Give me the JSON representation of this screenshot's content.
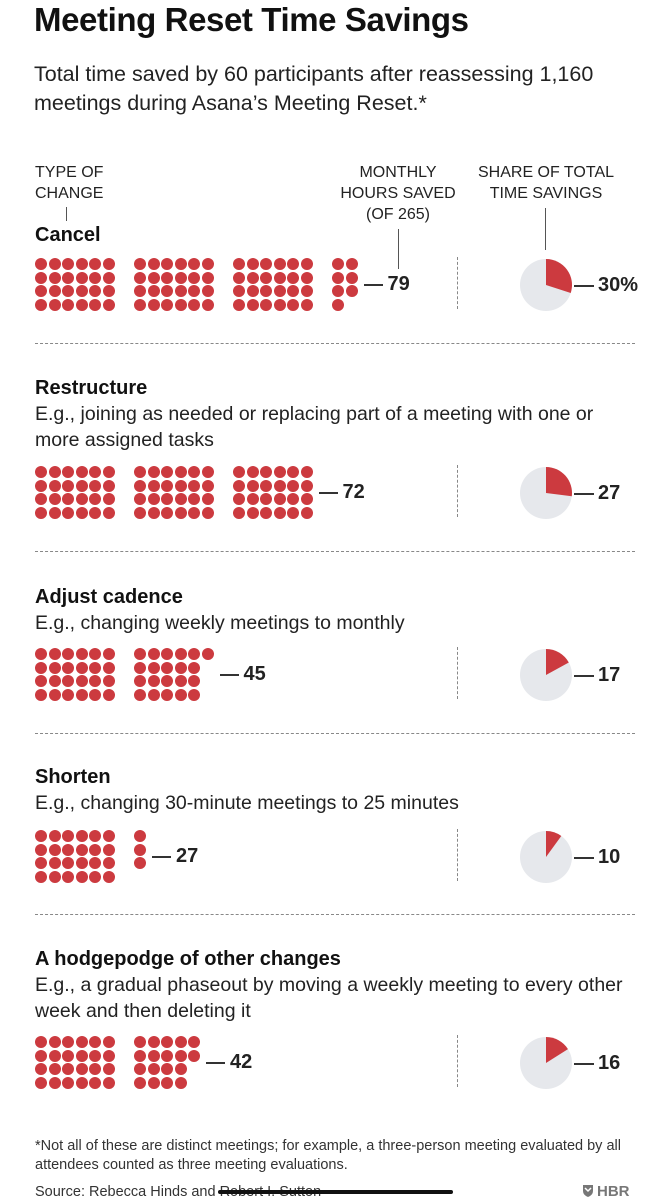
{
  "title": "Meeting Reset Time Savings",
  "subtitle": "Total time saved by 60 participants after reassessing 1,160 meetings during Asana’s Meeting Reset.*",
  "headers": {
    "type": "TYPE OF CHANGE",
    "hours": "MONTHLY HOURS SAVED (OF 265)",
    "share": "SHARE OF TOTAL TIME SAVINGS"
  },
  "colors": {
    "dot": "#cc3a3f",
    "pie_bg": "#e6e8ec",
    "pie_fill": "#cc3a3f"
  },
  "chart_data": {
    "type": "pictogram",
    "total_hours": 265,
    "categories": [
      "Cancel",
      "Restructure",
      "Adjust cadence",
      "Shorten",
      "A hodgepodge of other changes"
    ],
    "rows": [
      {
        "name": "Cancel",
        "description": "",
        "hours": 79,
        "hours_label": "79",
        "share": 30,
        "share_label": "30%"
      },
      {
        "name": "Restructure",
        "description": "E.g., joining as needed or replacing part of a meeting with one or more assigned tasks",
        "hours": 72,
        "hours_label": "72",
        "share": 27,
        "share_label": "27"
      },
      {
        "name": "Adjust cadence",
        "description": "E.g., changing weekly meetings to monthly",
        "hours": 45,
        "hours_label": "45",
        "share": 17,
        "share_label": "17"
      },
      {
        "name": "Shorten",
        "description": "E.g., changing 30-minute meetings to 25 minutes",
        "hours": 27,
        "hours_label": "27",
        "share": 10,
        "share_label": "10"
      },
      {
        "name": "A hodgepodge of other changes",
        "description": "E.g., a gradual phaseout by moving a weekly meeting to every other week and then deleting it",
        "hours": 42,
        "hours_label": "42",
        "share": 16,
        "share_label": "16"
      }
    ]
  },
  "footnote": "*Not all of these are distinct meetings; for example, a three-person meeting evaluated by all attendees counted as three meeting evaluations.",
  "source": "Source: Rebecca Hinds and Robert I. Sutton",
  "brand": "HBR"
}
